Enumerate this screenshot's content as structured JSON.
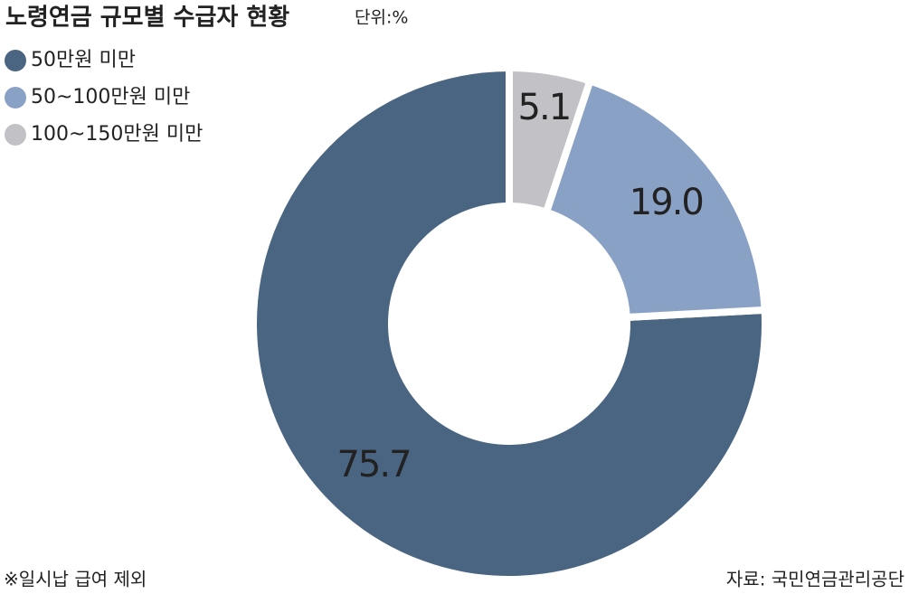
{
  "chart_data": {
    "type": "donut",
    "title": "노령연금 규모별 수급자 현황",
    "unit": "단위:%",
    "categories": [
      "50만원 미만",
      "50~100만원 미만",
      "100~150만원 미만"
    ],
    "values": [
      75.7,
      19.0,
      5.1
    ],
    "value_labels": [
      "75.7",
      "19.0",
      "5.1"
    ],
    "colors": [
      "#4a6582",
      "#8aa1c6",
      "#c1c1c6"
    ],
    "direction": "counterclockwise",
    "footnote": "※일시납 급여 제외",
    "source": "자료: 국민연금관리공단"
  }
}
